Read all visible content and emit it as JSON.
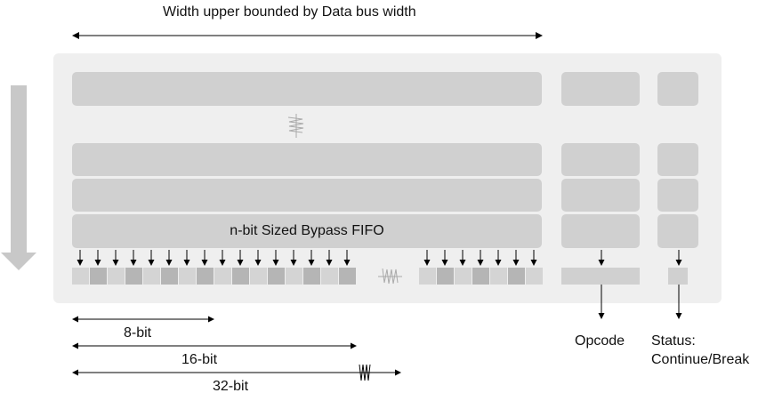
{
  "diagram": {
    "top_label": "Width upper bounded by Data bus width",
    "fifo_label": "n-bit Sized Bypass FIFO",
    "opcode_label": "Opcode",
    "status_label_line1": "Status:",
    "status_label_line2": "Continue/Break",
    "widths": [
      {
        "label": "8-bit"
      },
      {
        "label": "16-bit"
      },
      {
        "label": "32-bit"
      }
    ]
  }
}
